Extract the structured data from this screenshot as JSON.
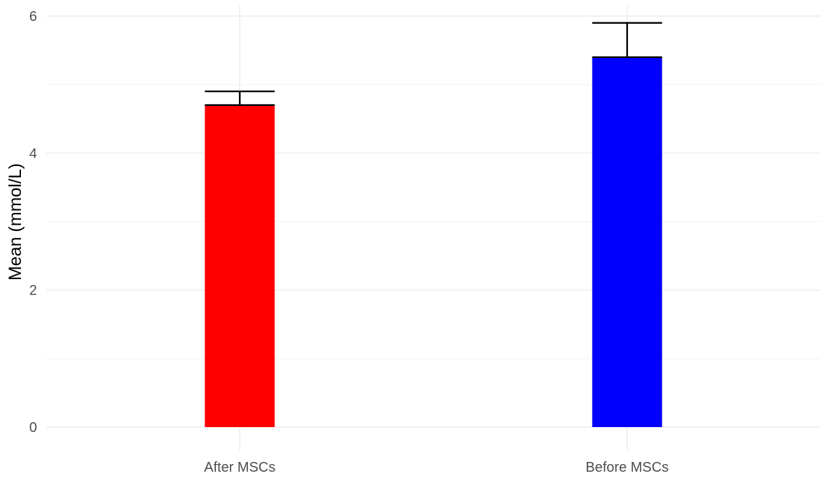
{
  "chart_data": {
    "type": "bar",
    "categories": [
      "After MSCs",
      "Before MSCs"
    ],
    "values": [
      4.7,
      5.4
    ],
    "error_upper": [
      4.9,
      5.9
    ],
    "colors": [
      "#ff0000",
      "#0000ff"
    ],
    "ylabel": "Mean (mmol/L)",
    "xlabel": "",
    "ylim": [
      0,
      6
    ],
    "yticks": [
      0,
      2,
      4,
      6
    ],
    "grid": true,
    "legend": "none"
  }
}
